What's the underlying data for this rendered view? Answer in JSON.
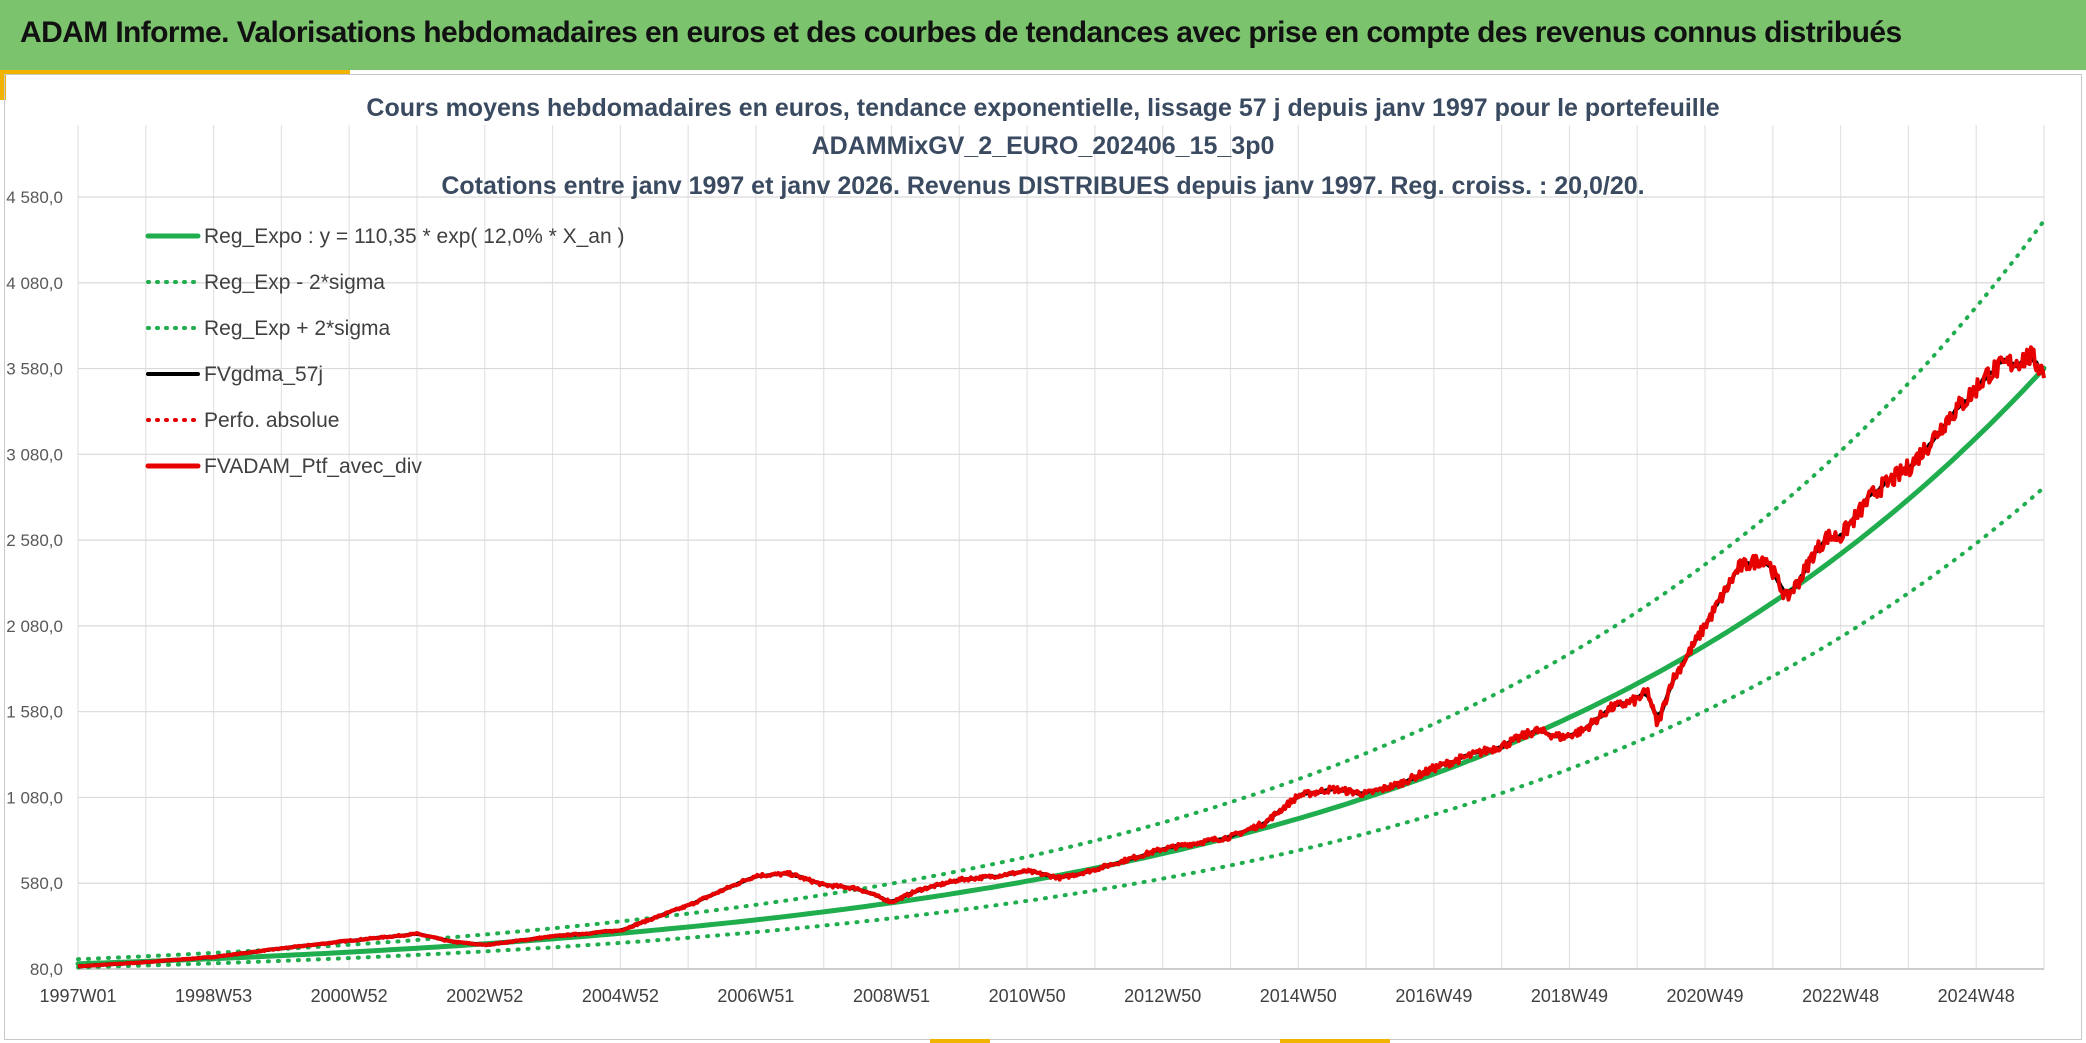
{
  "header": {
    "title": "ADAM Informe. Valorisations hebdomadaires en euros et des courbes de tendances avec prise en compte des revenus connus distribués"
  },
  "chart_data": {
    "type": "line",
    "title": [
      "Cours moyens hebdomadaires en euros, tendance exponentielle, lissage 57 j depuis janv 1997 pour le portefeuille",
      "ADAMMixGV_2_EURO_202406_15_3p0",
      "Cotations entre janv 1997 et janv 2026. Revenus DISTRIBUES depuis janv 1997. Reg. croiss. : 20,0/20."
    ],
    "xlabel": "",
    "ylabel": "",
    "ylim": [
      80,
      4580
    ],
    "xlim": [
      1997.0,
      2026.0
    ],
    "y_ticks": [
      80,
      580,
      1080,
      1580,
      2080,
      2580,
      3080,
      3580,
      4080,
      4580
    ],
    "y_tick_labels": [
      "80,0",
      "580,0",
      "1 080,0",
      "1 580,0",
      "2 080,0",
      "2 580,0",
      "3 080,0",
      "3 580,0",
      "4 080,0",
      "4 580,0"
    ],
    "x_ticks": [
      1997.0,
      1999.0,
      2001.0,
      2003.0,
      2005.0,
      2007.0,
      2009.0,
      2011.0,
      2013.0,
      2015.0,
      2017.0,
      2019.0,
      2021.0,
      2023.0,
      2025.0
    ],
    "x_tick_labels": [
      "1997W01",
      "1998W53",
      "2000W52",
      "2002W52",
      "2004W52",
      "2006W51",
      "2008W51",
      "2010W50",
      "2012W50",
      "2014W50",
      "2016W49",
      "2018W49",
      "2020W49",
      "2022W48",
      "2024W48"
    ],
    "grid": true,
    "legend": "top-left",
    "regression": {
      "a": 110.35,
      "rate": 0.12,
      "sigma_factor": 1.24
    },
    "series": [
      {
        "name": "Reg_Expo : y = 110,35 * exp( 12,0% *  X_an )",
        "color": "#1fad4e",
        "style": "solid",
        "width": 5,
        "kind": "fit",
        "factor": 1.0
      },
      {
        "name": "Reg_Exp - 2*sigma",
        "color": "#1fad4e",
        "style": "dotted",
        "width": 4,
        "kind": "fit",
        "factor": 0.806
      },
      {
        "name": "Reg_Exp + 2*sigma",
        "color": "#1fad4e",
        "style": "dotted",
        "width": 4,
        "kind": "fit",
        "factor": 1.24
      },
      {
        "name": "FVgdma_57j",
        "color": "#000000",
        "style": "solid",
        "width": 4,
        "kind": "smooth"
      },
      {
        "name": "Perfo. absolue",
        "color": "#e60000",
        "style": "dotted",
        "width": 4,
        "kind": "none"
      },
      {
        "name": "FVADAM_Ptf_avec_div",
        "color": "#e60000",
        "style": "solid",
        "width": 5,
        "kind": "price"
      }
    ],
    "price_x": [
      1997.0,
      1998.0,
      1999.0,
      2000.0,
      2001.0,
      2002.0,
      2002.5,
      2003.0,
      2003.5,
      2004.0,
      2005.0,
      2006.0,
      2007.0,
      2007.5,
      2008.0,
      2008.5,
      2009.0,
      2009.4,
      2010.0,
      2010.5,
      2011.0,
      2011.5,
      2012.0,
      2013.0,
      2014.0,
      2014.5,
      2015.0,
      2015.5,
      2016.0,
      2016.5,
      2017.0,
      2017.5,
      2018.0,
      2018.5,
      2018.9,
      2019.2,
      2019.6,
      2020.0,
      2020.15,
      2020.3,
      2020.5,
      2021.0,
      2021.5,
      2021.9,
      2022.2,
      2022.4,
      2022.6,
      2022.8,
      2023.0,
      2023.5,
      2024.0,
      2024.3,
      2024.6,
      2024.9,
      2025.2,
      2025.5,
      2025.8,
      2026.0
    ],
    "price_y": [
      95,
      120,
      150,
      200,
      245,
      285,
      240,
      220,
      245,
      270,
      305,
      450,
      625,
      635,
      570,
      550,
      470,
      540,
      600,
      620,
      650,
      610,
      660,
      780,
      850,
      930,
      1090,
      1130,
      1100,
      1160,
      1250,
      1320,
      1380,
      1470,
      1430,
      1470,
      1600,
      1650,
      1700,
      1500,
      1750,
      2080,
      2420,
      2480,
      2240,
      2350,
      2500,
      2600,
      2600,
      2860,
      3000,
      3140,
      3300,
      3420,
      3560,
      3610,
      3650,
      3560
    ]
  }
}
